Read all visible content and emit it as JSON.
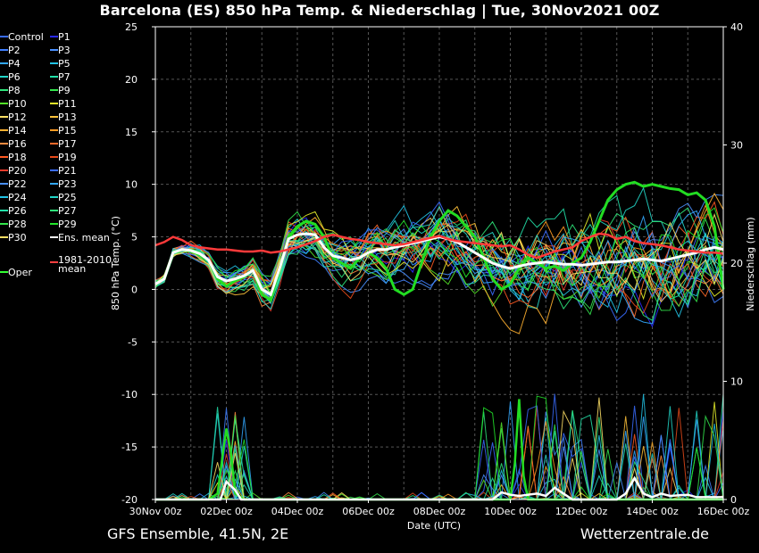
{
  "title": "Barcelona  (ES)  850 hPa Temp. & Niederschlag | Tue, 30Nov2021 00Z",
  "footer_left": "GFS Ensemble, 41.5N, 2E",
  "footer_right": "Wetterzentrale.de",
  "chart_data": {
    "type": "line",
    "xlabel": "Date (UTC)",
    "ylabel": "850 hPa Temp. (°C)",
    "y2label": "Niederschlag (mm)",
    "ylim": [
      -20,
      25
    ],
    "y2lim": [
      0,
      40
    ],
    "yticks": [
      -20,
      -15,
      -10,
      -5,
      0,
      5,
      10,
      15,
      20,
      25
    ],
    "y2ticks": [
      0,
      10,
      20,
      30,
      40
    ],
    "xlim_hours": [
      0,
      384
    ],
    "xticks": [
      {
        "h": 0,
        "label": "30Nov 00z"
      },
      {
        "h": 48,
        "label": "02Dec 00z"
      },
      {
        "h": 96,
        "label": "04Dec 00z"
      },
      {
        "h": 144,
        "label": "06Dec 00z"
      },
      {
        "h": 192,
        "label": "08Dec 00z"
      },
      {
        "h": 240,
        "label": "10Dec 00z"
      },
      {
        "h": 288,
        "label": "12Dec 00z"
      },
      {
        "h": 336,
        "label": "14Dec 00z"
      },
      {
        "h": 384,
        "label": "16Dec 00z"
      }
    ],
    "grid": true,
    "legend_placement": "left",
    "legend": [
      {
        "label": "Control",
        "color": "#3a6cff"
      },
      {
        "label": "P1",
        "color": "#2a2aff"
      },
      {
        "label": "P2",
        "color": "#3f7fff"
      },
      {
        "label": "P3",
        "color": "#4a90ff"
      },
      {
        "label": "P4",
        "color": "#33a8ff"
      },
      {
        "label": "P5",
        "color": "#22c4e6"
      },
      {
        "label": "P6",
        "color": "#22d6c8"
      },
      {
        "label": "P7",
        "color": "#22e0a8"
      },
      {
        "label": "P8",
        "color": "#2ee67a"
      },
      {
        "label": "P9",
        "color": "#33e64c"
      },
      {
        "label": "P10",
        "color": "#55e62a"
      },
      {
        "label": "P11",
        "color": "#e6f02a"
      },
      {
        "label": "P12",
        "color": "#ffe066"
      },
      {
        "label": "P13",
        "color": "#ffc23a"
      },
      {
        "label": "P14",
        "color": "#ffb030"
      },
      {
        "label": "P15",
        "color": "#ff9a22"
      },
      {
        "label": "P16",
        "color": "#ff8c40"
      },
      {
        "label": "P17",
        "color": "#ff6a2a"
      },
      {
        "label": "P18",
        "color": "#ff5a22"
      },
      {
        "label": "P19",
        "color": "#e84a1a"
      },
      {
        "label": "P20",
        "color": "#e83a2a"
      },
      {
        "label": "P21",
        "color": "#3a6cff"
      },
      {
        "label": "P22",
        "color": "#4a90ff"
      },
      {
        "label": "P23",
        "color": "#33a8ff"
      },
      {
        "label": "P24",
        "color": "#22c4e6"
      },
      {
        "label": "P25",
        "color": "#22d6c8"
      },
      {
        "label": "P26",
        "color": "#22e0a8"
      },
      {
        "label": "P27",
        "color": "#2ee67a"
      },
      {
        "label": "P28",
        "color": "#33e64c"
      },
      {
        "label": "P29",
        "color": "#22e62a"
      },
      {
        "label": "P30",
        "color": "#ffe066"
      },
      {
        "label": "Ens. mean",
        "color": "#ffffff"
      },
      {
        "label": "Oper",
        "color": "#33ff33"
      },
      {
        "label": "1981-2010 mean",
        "color": "#ff4040"
      }
    ],
    "series": [
      {
        "name": "Oper",
        "color": "#22dd22",
        "width": 3,
        "points": [
          [
            0,
            0.5
          ],
          [
            6,
            1
          ],
          [
            12,
            3.5
          ],
          [
            18,
            3.8
          ],
          [
            24,
            3.6
          ],
          [
            30,
            3.3
          ],
          [
            36,
            2.8
          ],
          [
            42,
            1
          ],
          [
            48,
            0.3
          ],
          [
            54,
            0.8
          ],
          [
            60,
            1.2
          ],
          [
            66,
            1.8
          ],
          [
            72,
            -0.5
          ],
          [
            78,
            -1
          ],
          [
            84,
            2
          ],
          [
            90,
            5
          ],
          [
            96,
            6
          ],
          [
            102,
            6.5
          ],
          [
            108,
            6.2
          ],
          [
            114,
            5
          ],
          [
            120,
            3
          ],
          [
            126,
            2.5
          ],
          [
            132,
            2
          ],
          [
            138,
            3
          ],
          [
            144,
            3.5
          ],
          [
            150,
            3
          ],
          [
            156,
            2
          ],
          [
            162,
            0
          ],
          [
            168,
            -0.5
          ],
          [
            174,
            0
          ],
          [
            180,
            2.5
          ],
          [
            186,
            5
          ],
          [
            192,
            6.5
          ],
          [
            198,
            7.5
          ],
          [
            204,
            7
          ],
          [
            210,
            6
          ],
          [
            216,
            5
          ],
          [
            222,
            3
          ],
          [
            228,
            1
          ],
          [
            234,
            0
          ],
          [
            240,
            0.5
          ],
          [
            246,
            2
          ],
          [
            252,
            3
          ],
          [
            258,
            2.5
          ],
          [
            264,
            2
          ],
          [
            270,
            2.2
          ],
          [
            276,
            1.8
          ],
          [
            282,
            2.5
          ],
          [
            288,
            3
          ],
          [
            294,
            4.5
          ],
          [
            300,
            6.5
          ],
          [
            306,
            8.5
          ],
          [
            312,
            9.5
          ],
          [
            318,
            10
          ],
          [
            324,
            10.2
          ],
          [
            330,
            9.8
          ],
          [
            336,
            10
          ],
          [
            342,
            9.8
          ],
          [
            348,
            9.6
          ],
          [
            354,
            9.5
          ],
          [
            360,
            9
          ],
          [
            366,
            9.2
          ],
          [
            372,
            8.5
          ],
          [
            378,
            6
          ],
          [
            384,
            0
          ]
        ]
      },
      {
        "name": "Ens. mean",
        "color": "#ffffff",
        "width": 3,
        "points": [
          [
            0,
            0.5
          ],
          [
            6,
            1
          ],
          [
            12,
            3.5
          ],
          [
            18,
            3.8
          ],
          [
            24,
            3.7
          ],
          [
            30,
            3.4
          ],
          [
            36,
            2.8
          ],
          [
            42,
            1.2
          ],
          [
            48,
            0.8
          ],
          [
            54,
            1
          ],
          [
            60,
            1.3
          ],
          [
            66,
            1.8
          ],
          [
            72,
            0
          ],
          [
            78,
            -0.5
          ],
          [
            84,
            2
          ],
          [
            90,
            4.8
          ],
          [
            96,
            5.2
          ],
          [
            102,
            5.3
          ],
          [
            108,
            5.2
          ],
          [
            114,
            4
          ],
          [
            120,
            3.2
          ],
          [
            126,
            3
          ],
          [
            132,
            2.8
          ],
          [
            138,
            3
          ],
          [
            144,
            3.5
          ],
          [
            150,
            3.8
          ],
          [
            156,
            3.8
          ],
          [
            162,
            4
          ],
          [
            168,
            4.2
          ],
          [
            174,
            4.4
          ],
          [
            180,
            4.6
          ],
          [
            186,
            4.8
          ],
          [
            192,
            5
          ],
          [
            198,
            4.8
          ],
          [
            204,
            4.5
          ],
          [
            210,
            4
          ],
          [
            216,
            3.5
          ],
          [
            222,
            3
          ],
          [
            228,
            2.5
          ],
          [
            234,
            2.2
          ],
          [
            240,
            2
          ],
          [
            246,
            2.2
          ],
          [
            252,
            2.4
          ],
          [
            258,
            2.5
          ],
          [
            264,
            2.6
          ],
          [
            270,
            2.5
          ],
          [
            276,
            2.4
          ],
          [
            282,
            2.4
          ],
          [
            288,
            2.3
          ],
          [
            294,
            2.4
          ],
          [
            300,
            2.5
          ],
          [
            306,
            2.6
          ],
          [
            312,
            2.6
          ],
          [
            318,
            2.7
          ],
          [
            324,
            2.8
          ],
          [
            330,
            2.9
          ],
          [
            336,
            2.8
          ],
          [
            342,
            2.7
          ],
          [
            348,
            2.9
          ],
          [
            354,
            3.1
          ],
          [
            360,
            3.3
          ],
          [
            366,
            3.5
          ],
          [
            372,
            3.8
          ],
          [
            378,
            4
          ],
          [
            384,
            3.8
          ]
        ]
      },
      {
        "name": "1981-2010 mean",
        "color": "#ff3a3a",
        "width": 2.5,
        "points": [
          [
            0,
            4.2
          ],
          [
            6,
            4.5
          ],
          [
            12,
            5
          ],
          [
            18,
            4.7
          ],
          [
            24,
            4.2
          ],
          [
            30,
            4
          ],
          [
            36,
            3.9
          ],
          [
            42,
            3.8
          ],
          [
            48,
            3.8
          ],
          [
            54,
            3.7
          ],
          [
            60,
            3.6
          ],
          [
            66,
            3.6
          ],
          [
            72,
            3.7
          ],
          [
            78,
            3.5
          ],
          [
            84,
            3.6
          ],
          [
            90,
            3.8
          ],
          [
            96,
            4
          ],
          [
            102,
            4.3
          ],
          [
            108,
            4.6
          ],
          [
            114,
            5
          ],
          [
            120,
            5.2
          ],
          [
            126,
            5
          ],
          [
            132,
            4.8
          ],
          [
            138,
            4.7
          ],
          [
            144,
            4.5
          ],
          [
            150,
            4.4
          ],
          [
            156,
            4.3
          ],
          [
            162,
            4.2
          ],
          [
            168,
            4.3
          ],
          [
            174,
            4.5
          ],
          [
            180,
            4.7
          ],
          [
            186,
            4.9
          ],
          [
            192,
            5.1
          ],
          [
            198,
            4.8
          ],
          [
            204,
            4.6
          ],
          [
            210,
            4.5
          ],
          [
            216,
            4.4
          ],
          [
            222,
            4.3
          ],
          [
            228,
            4.2
          ],
          [
            234,
            4.1
          ],
          [
            240,
            4.2
          ],
          [
            246,
            3.8
          ],
          [
            252,
            3.3
          ],
          [
            258,
            3
          ],
          [
            264,
            3.3
          ],
          [
            270,
            3.6
          ],
          [
            276,
            3.8
          ],
          [
            282,
            4
          ],
          [
            288,
            4.6
          ],
          [
            294,
            5
          ],
          [
            300,
            5.3
          ],
          [
            306,
            5.2
          ],
          [
            312,
            4.8
          ],
          [
            318,
            5
          ],
          [
            324,
            4.6
          ],
          [
            330,
            4.4
          ],
          [
            336,
            4.3
          ],
          [
            342,
            4.2
          ],
          [
            348,
            4
          ],
          [
            354,
            3.8
          ],
          [
            360,
            3.7
          ],
          [
            366,
            3.6
          ],
          [
            372,
            3.5
          ],
          [
            378,
            3.5
          ],
          [
            384,
            3.4
          ]
        ]
      }
    ],
    "precipitation_mm": [
      {
        "name": "Oper",
        "color": "#22dd22",
        "points": [
          [
            0,
            0
          ],
          [
            36,
            0
          ],
          [
            42,
            0.5
          ],
          [
            48,
            6
          ],
          [
            51,
            4
          ],
          [
            54,
            0.5
          ],
          [
            60,
            0
          ],
          [
            240,
            0
          ],
          [
            243,
            3
          ],
          [
            246,
            8.5
          ],
          [
            249,
            2
          ],
          [
            252,
            0
          ],
          [
            384,
            0
          ]
        ]
      },
      {
        "name": "Ens. mean",
        "color": "#ffffff",
        "points": [
          [
            0,
            0
          ],
          [
            44,
            0
          ],
          [
            48,
            1.5
          ],
          [
            54,
            0.8
          ],
          [
            58,
            0
          ],
          [
            228,
            0
          ],
          [
            234,
            0.6
          ],
          [
            240,
            0.4
          ],
          [
            246,
            0.3
          ],
          [
            258,
            0.5
          ],
          [
            264,
            0.3
          ],
          [
            270,
            1
          ],
          [
            276,
            0.5
          ],
          [
            282,
            0
          ],
          [
            312,
            0
          ],
          [
            318,
            0.5
          ],
          [
            324,
            1.8
          ],
          [
            330,
            0.5
          ],
          [
            336,
            0.2
          ],
          [
            342,
            0.5
          ],
          [
            348,
            0.3
          ],
          [
            360,
            0.4
          ],
          [
            366,
            0.2
          ],
          [
            384,
            0.2
          ]
        ]
      }
    ]
  }
}
